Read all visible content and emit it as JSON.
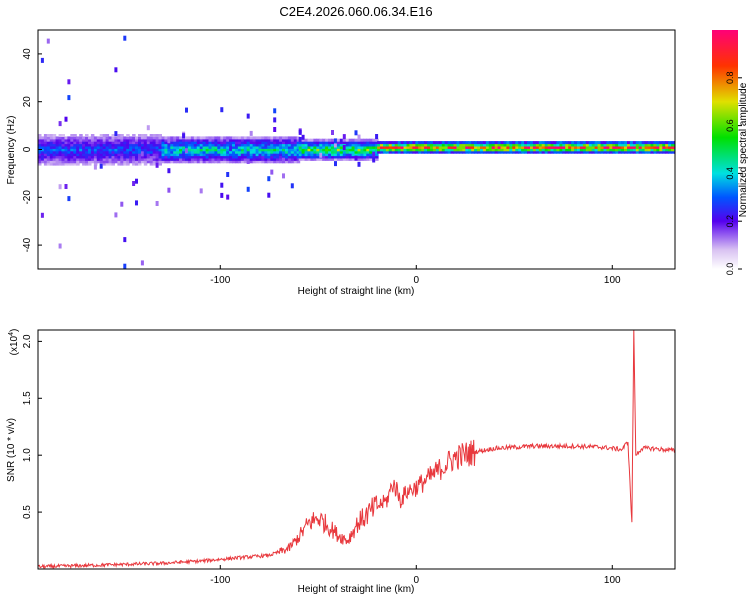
{
  "figure_title": "C2E4.2026.060.06.34.E16",
  "chart_data": [
    {
      "type": "heatmap",
      "title": "C2E4.2026.060.06.34.E16",
      "xlabel": "Height of straight line (km)",
      "ylabel": "Frequency (Hz)",
      "xlim": [
        -193,
        132
      ],
      "ylim": [
        -50,
        50
      ],
      "xticks": [
        -100,
        0,
        100
      ],
      "yticks": [
        -40,
        -20,
        0,
        20,
        40
      ],
      "colorbar": {
        "label": "Normalized spectral amplitude",
        "range": [
          0,
          1
        ],
        "ticks": [
          "0.0",
          "0.2",
          "0.4",
          "0.6",
          "0.8"
        ]
      },
      "bands": [
        {
          "x_start": -193,
          "x_end": -130,
          "center_hz": 0,
          "halfwidth_hz": 8,
          "amplitude": 0.3,
          "scatter_hz": 50
        },
        {
          "x_start": -130,
          "x_end": -60,
          "center_hz": 0,
          "halfwidth_hz": 6,
          "amplitude": 0.45,
          "scatter_hz": 20
        },
        {
          "x_start": -60,
          "x_end": -20,
          "center_hz": 0,
          "halfwidth_hz": 4,
          "amplitude": 0.6,
          "scatter_hz": 8
        },
        {
          "x_start": -20,
          "x_end": 132,
          "center_hz": 1,
          "halfwidth_hz": 2,
          "amplitude": 0.85,
          "scatter_hz": 0
        }
      ]
    },
    {
      "type": "line",
      "xlabel": "Height of straight line (km)",
      "ylabel": "SNR (10 * v/v)",
      "y_multiplier": "(x10",
      "y_multiplier_exp": "4",
      "y_multiplier_close": ")",
      "xlim": [
        -193,
        132
      ],
      "ylim": [
        0,
        2.1
      ],
      "xticks": [
        -100,
        0,
        100
      ],
      "yticks": [
        "0.5",
        "1.0",
        "1.5",
        "2.0"
      ],
      "ytick_values": [
        0.5,
        1.0,
        1.5,
        2.0
      ],
      "series": [
        {
          "name": "SNR",
          "color": "#e8383d",
          "x": [
            -193,
            -170,
            -150,
            -130,
            -110,
            -90,
            -75,
            -65,
            -60,
            -55,
            -50,
            -45,
            -40,
            -35,
            -30,
            -25,
            -20,
            -15,
            -12,
            -10,
            -8,
            -5,
            0,
            5,
            10,
            15,
            20,
            30,
            40,
            60,
            80,
            95,
            100,
            105,
            108,
            110,
            111,
            112,
            115,
            120,
            132
          ],
          "y": [
            0.02,
            0.03,
            0.04,
            0.05,
            0.07,
            0.1,
            0.12,
            0.18,
            0.28,
            0.4,
            0.45,
            0.38,
            0.3,
            0.25,
            0.4,
            0.48,
            0.55,
            0.6,
            0.75,
            0.7,
            0.6,
            0.68,
            0.72,
            0.78,
            0.85,
            0.92,
            0.98,
            1.03,
            1.06,
            1.08,
            1.08,
            1.07,
            1.06,
            1.05,
            1.12,
            0.4,
            2.1,
            1.0,
            1.06,
            1.06,
            1.04
          ]
        }
      ]
    }
  ]
}
